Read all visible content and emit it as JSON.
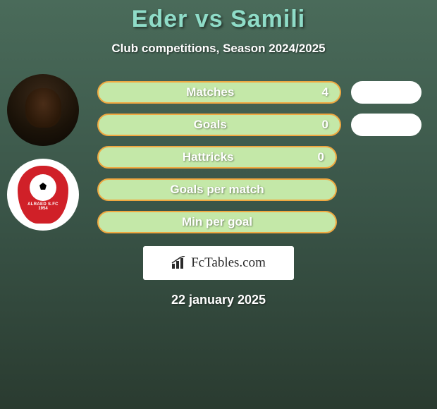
{
  "title": "Eder vs Samili",
  "subtitle": "Club competitions, Season 2024/2025",
  "date": "22 january 2025",
  "watermark": {
    "label": "FcTables.com"
  },
  "avatars": {
    "player_name": "Eder",
    "club_name": "ALRAED S.FC",
    "club_year": "1954"
  },
  "colors": {
    "title": "#8fdcc8",
    "bar_fill": "#c4e8a8",
    "bar_border": "#f0a840",
    "right_pill": "#ffffff",
    "text": "#ffffff",
    "badge": "#d02028"
  },
  "stats": [
    {
      "label": "Matches",
      "left_value": "4",
      "has_right_pill": true
    },
    {
      "label": "Goals",
      "left_value": "0",
      "has_right_pill": true
    },
    {
      "label": "Hattricks",
      "left_value": "0",
      "has_right_pill": false
    },
    {
      "label": "Goals per match",
      "left_value": "",
      "has_right_pill": false
    },
    {
      "label": "Min per goal",
      "left_value": "",
      "has_right_pill": false
    }
  ]
}
